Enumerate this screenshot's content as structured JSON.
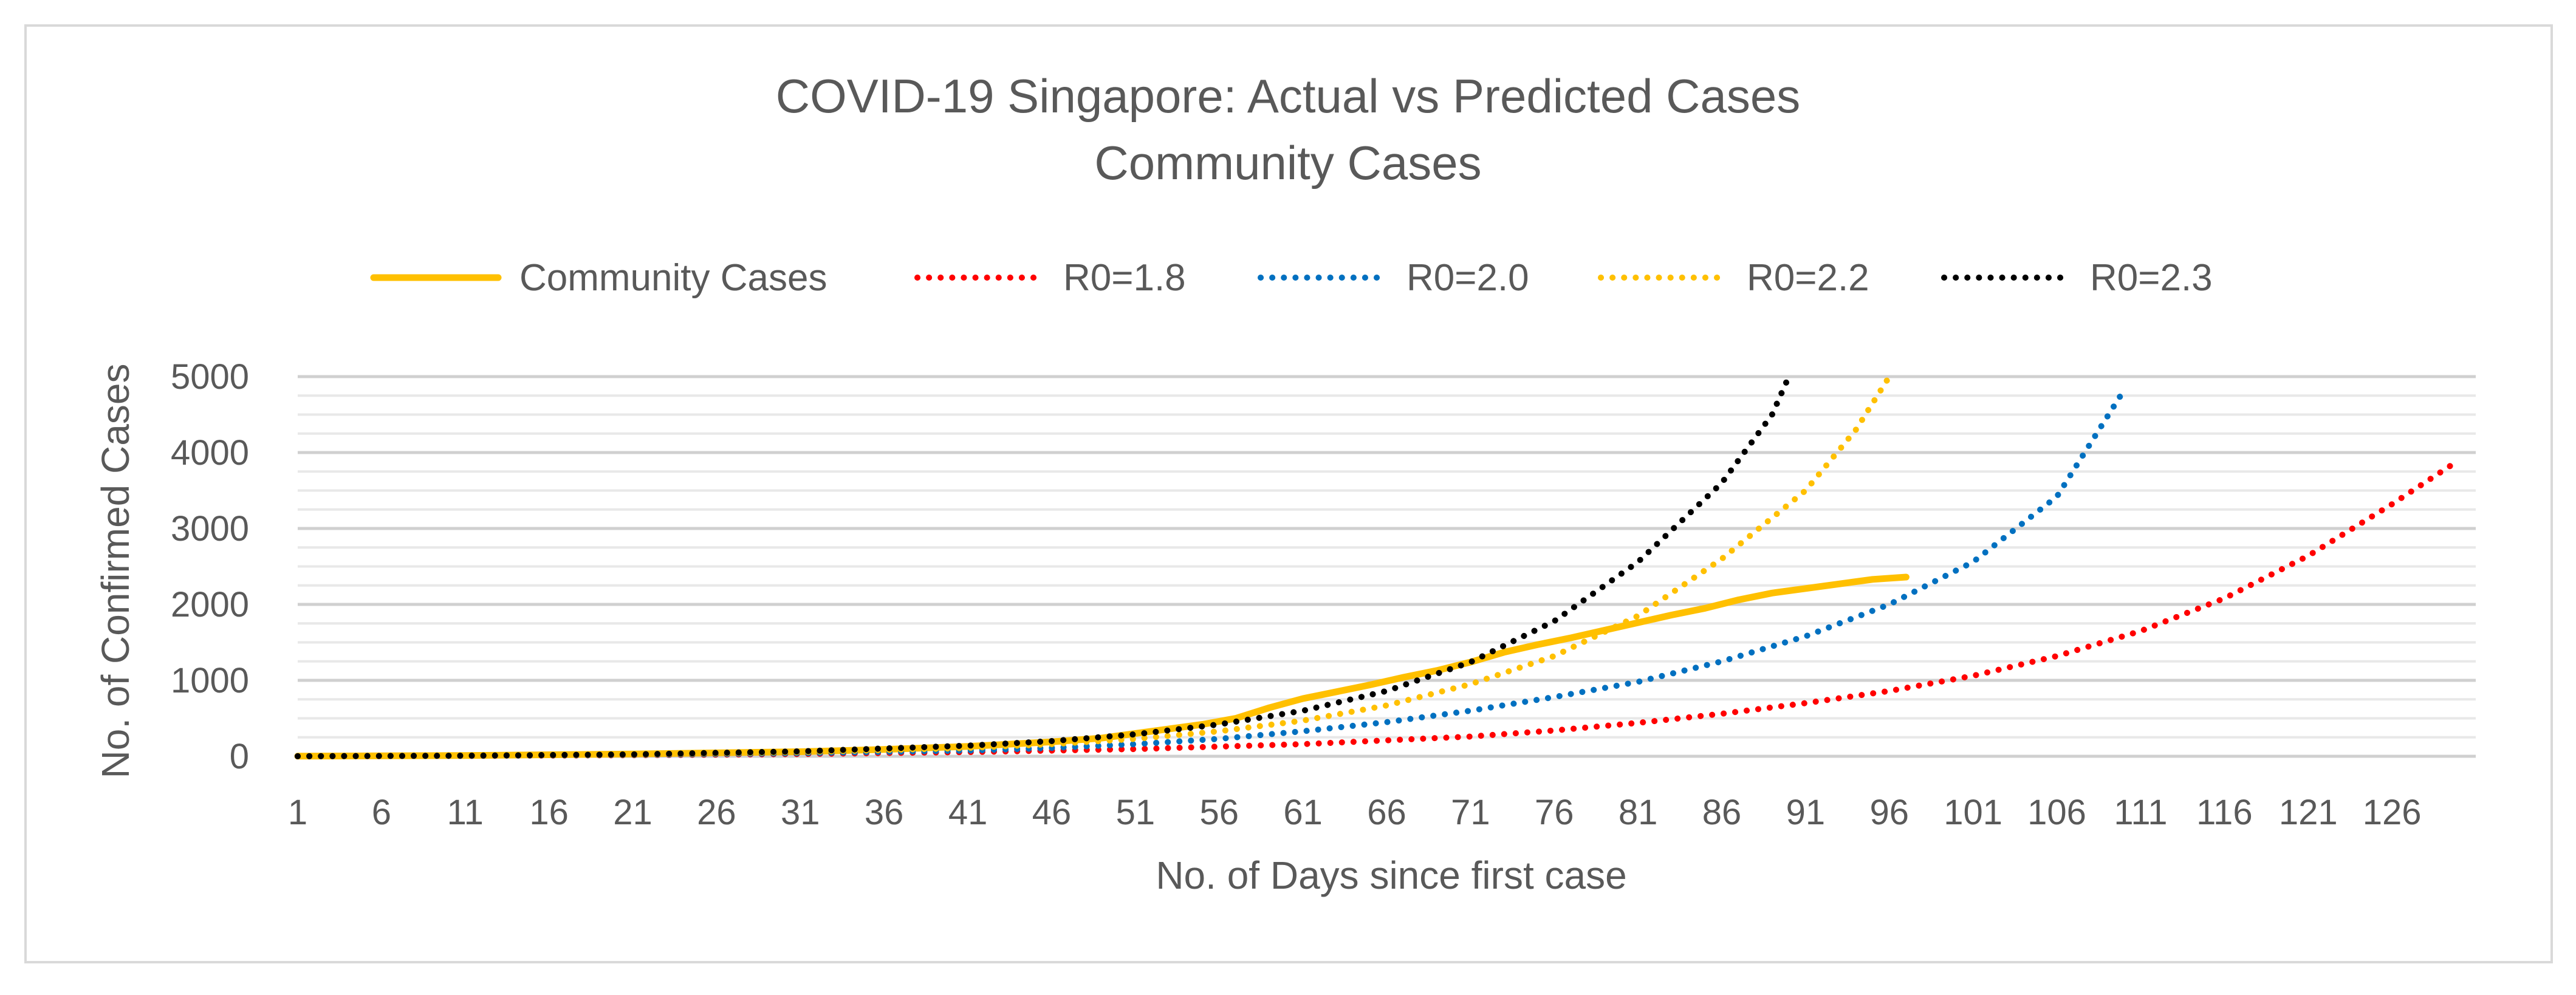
{
  "chart_data": {
    "type": "line",
    "title": "COVID-19 Singapore: Actual vs Predicted Cases",
    "subtitle": "Community Cases",
    "xlabel": "No. of Days since first case",
    "ylabel": "No. of Confirmed Cases",
    "xlim": [
      1,
      131
    ],
    "ylim": [
      0,
      5000
    ],
    "x_ticks": [
      "1",
      "6",
      "11",
      "16",
      "21",
      "26",
      "31",
      "36",
      "41",
      "46",
      "51",
      "56",
      "61",
      "66",
      "71",
      "76",
      "81",
      "86",
      "91",
      "96",
      "101",
      "106",
      "111",
      "116",
      "121",
      "126"
    ],
    "y_ticks": [
      "0",
      "1000",
      "2000",
      "3000",
      "4000",
      "5000"
    ],
    "grid": true,
    "legend_position": "top",
    "series": [
      {
        "name": "Community Cases",
        "color": "#FFC000",
        "style": "solid",
        "points": [
          [
            1,
            2
          ],
          [
            11,
            10
          ],
          [
            21,
            30
          ],
          [
            31,
            60
          ],
          [
            36,
            90
          ],
          [
            41,
            130
          ],
          [
            46,
            190
          ],
          [
            49,
            240
          ],
          [
            51,
            300
          ],
          [
            53,
            360
          ],
          [
            55,
            420
          ],
          [
            57,
            500
          ],
          [
            59,
            640
          ],
          [
            61,
            760
          ],
          [
            63,
            850
          ],
          [
            65,
            940
          ],
          [
            67,
            1040
          ],
          [
            69,
            1130
          ],
          [
            71,
            1240
          ],
          [
            73,
            1370
          ],
          [
            75,
            1470
          ],
          [
            77,
            1560
          ],
          [
            79,
            1660
          ],
          [
            81,
            1760
          ],
          [
            83,
            1860
          ],
          [
            85,
            1950
          ],
          [
            87,
            2060
          ],
          [
            89,
            2150
          ],
          [
            91,
            2210
          ],
          [
            93,
            2270
          ],
          [
            95,
            2330
          ],
          [
            97,
            2360
          ]
        ]
      },
      {
        "name": "R0=1.8",
        "color": "#FF0000",
        "style": "dotted",
        "points": [
          [
            1,
            1
          ],
          [
            11,
            5
          ],
          [
            21,
            14
          ],
          [
            31,
            30
          ],
          [
            41,
            55
          ],
          [
            51,
            95
          ],
          [
            61,
            160
          ],
          [
            71,
            260
          ],
          [
            76,
            340
          ],
          [
            81,
            440
          ],
          [
            86,
            560
          ],
          [
            91,
            700
          ],
          [
            96,
            860
          ],
          [
            101,
            1060
          ],
          [
            106,
            1320
          ],
          [
            111,
            1650
          ],
          [
            116,
            2080
          ],
          [
            121,
            2640
          ],
          [
            126,
            3320
          ],
          [
            130,
            3900
          ]
        ]
      },
      {
        "name": "R0=2.0",
        "color": "#0070C0",
        "style": "dotted",
        "points": [
          [
            1,
            1
          ],
          [
            11,
            6
          ],
          [
            21,
            18
          ],
          [
            31,
            40
          ],
          [
            41,
            75
          ],
          [
            46,
            110
          ],
          [
            51,
            160
          ],
          [
            56,
            230
          ],
          [
            61,
            330
          ],
          [
            66,
            450
          ],
          [
            71,
            600
          ],
          [
            76,
            780
          ],
          [
            81,
            980
          ],
          [
            86,
            1250
          ],
          [
            91,
            1580
          ],
          [
            96,
            2000
          ],
          [
            101,
            2560
          ],
          [
            106,
            3420
          ],
          [
            110,
            4820
          ]
        ]
      },
      {
        "name": "R0=2.2",
        "color": "#FFC000",
        "style": "dotted",
        "points": [
          [
            1,
            1
          ],
          [
            11,
            7
          ],
          [
            21,
            22
          ],
          [
            31,
            55
          ],
          [
            41,
            110
          ],
          [
            46,
            160
          ],
          [
            51,
            230
          ],
          [
            56,
            330
          ],
          [
            61,
            470
          ],
          [
            66,
            670
          ],
          [
            71,
            950
          ],
          [
            76,
            1320
          ],
          [
            81,
            1850
          ],
          [
            86,
            2600
          ],
          [
            91,
            3500
          ],
          [
            94,
            4300
          ],
          [
            96,
            5000
          ]
        ]
      },
      {
        "name": "R0=2.3",
        "color": "#000000",
        "style": "dotted",
        "points": [
          [
            1,
            1
          ],
          [
            11,
            8
          ],
          [
            21,
            25
          ],
          [
            31,
            65
          ],
          [
            41,
            140
          ],
          [
            46,
            200
          ],
          [
            51,
            290
          ],
          [
            56,
            420
          ],
          [
            61,
            600
          ],
          [
            66,
            860
          ],
          [
            71,
            1240
          ],
          [
            76,
            1780
          ],
          [
            81,
            2560
          ],
          [
            86,
            3600
          ],
          [
            89,
            4500
          ],
          [
            90,
            5000
          ]
        ]
      }
    ]
  }
}
